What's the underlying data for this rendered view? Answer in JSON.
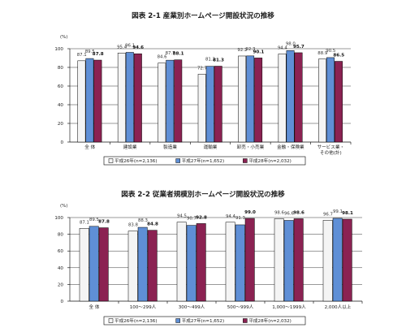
{
  "colors": {
    "s0": "#f4f4f4",
    "s1": "#5f8fd6",
    "s2": "#8b2252"
  },
  "chart_data": [
    {
      "type": "bar",
      "title": "図表 2-1 産業別ホームページ開設状況の推移",
      "ylabel": "(%)",
      "ylim": [
        0,
        100
      ],
      "yticks": [
        0,
        20,
        40,
        60,
        80,
        100
      ],
      "grid": true,
      "legend_position": "bottom",
      "categories": [
        "全 体",
        "建設業",
        "製造業",
        "運輸業",
        "卸売・小売業",
        "金融・保険業",
        "サービス業・その他(計)"
      ],
      "series": [
        {
          "name": "平成26年(n=2,136)",
          "values": [
            87.1,
            95.4,
            84.6,
            72.7,
            92.2,
            94.4,
            88.9
          ],
          "labels": [
            "87.1",
            "95.4",
            "84.6",
            "72.7",
            "92.2",
            "94.4",
            "88.9"
          ]
        },
        {
          "name": "平成27年(n=1,652)",
          "values": [
            89.5,
            96.1,
            87.7,
            81.2,
            92.3,
            98.0,
            90.5
          ],
          "labels": [
            "89.5",
            "96.1",
            "87.7",
            "81.2",
            "92.3",
            "98.0",
            "90.5"
          ]
        },
        {
          "name": "平成28年(n=2,032)",
          "values": [
            87.8,
            94.6,
            88.1,
            81.3,
            90.1,
            95.7,
            86.5
          ],
          "labels": [
            "87.8",
            "94.6",
            "88.1",
            "81.3",
            "90.1",
            "95.7",
            "86.5"
          ]
        }
      ]
    },
    {
      "type": "bar",
      "title": "図表 2-2 従業者規模別ホームページ開設状況の推移",
      "ylabel": "(%)",
      "ylim": [
        0,
        100
      ],
      "yticks": [
        0,
        20,
        40,
        60,
        80,
        100
      ],
      "grid": true,
      "legend_position": "bottom",
      "categories": [
        "全 体",
        "100〜299人",
        "300〜499人",
        "500〜999人",
        "1,000〜1999人",
        "2,000人以上"
      ],
      "series": [
        {
          "name": "平成26年(n=2,136)",
          "values": [
            87.1,
            83.8,
            94.5,
            94.4,
            98.6,
            96.7
          ],
          "labels": [
            "87.1",
            "83.8",
            "94.5",
            "94.4",
            "98.6",
            "96.7"
          ]
        },
        {
          "name": "平成27年(n=1,652)",
          "values": [
            89.5,
            88.3,
            90.7,
            91.3,
            96.6,
            99.1
          ],
          "labels": [
            "89.5",
            "88.3",
            "90.7",
            "91.3",
            "96.6",
            "99.1"
          ]
        },
        {
          "name": "平成28年(n=2,032)",
          "values": [
            87.8,
            84.8,
            92.8,
            99.0,
            98.6,
            98.1
          ],
          "labels": [
            "87.8",
            "84.8",
            "92.8",
            "99.0",
            "98.6",
            "98.1"
          ]
        }
      ]
    }
  ]
}
